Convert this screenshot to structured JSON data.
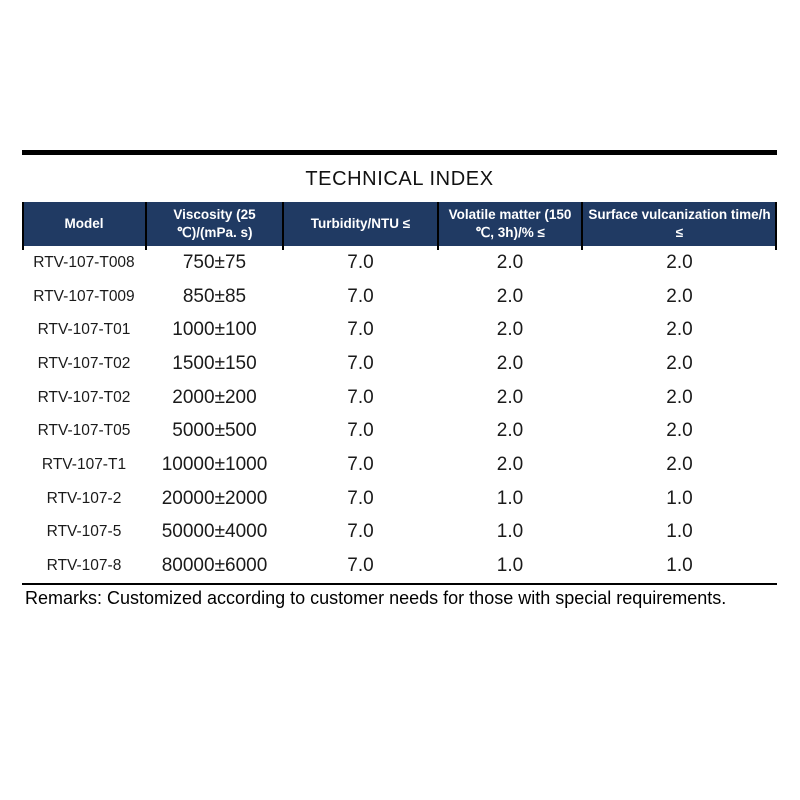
{
  "title": "TECHNICAL INDEX",
  "table": {
    "headers": [
      "Model",
      "Viscosity (25 ℃)/(mPa. s)",
      "Turbidity/NTU ≤",
      "Volatile matter (150 ℃, 3h)/% ≤",
      "Surface vulcanization time/h ≤"
    ],
    "rows": [
      [
        "RTV-107-T008",
        "750±75",
        "7.0",
        "2.0",
        "2.0"
      ],
      [
        "RTV-107-T009",
        "850±85",
        "7.0",
        "2.0",
        "2.0"
      ],
      [
        "RTV-107-T01",
        "1000±100",
        "7.0",
        "2.0",
        "2.0"
      ],
      [
        "RTV-107-T02",
        "1500±150",
        "7.0",
        "2.0",
        "2.0"
      ],
      [
        "RTV-107-T02",
        "2000±200",
        "7.0",
        "2.0",
        "2.0"
      ],
      [
        "RTV-107-T05",
        "5000±500",
        "7.0",
        "2.0",
        "2.0"
      ],
      [
        "RTV-107-T1",
        "10000±1000",
        "7.0",
        "2.0",
        "2.0"
      ],
      [
        "RTV-107-2",
        "20000±2000",
        "7.0",
        "1.0",
        "1.0"
      ],
      [
        "RTV-107-5",
        "50000±4000",
        "7.0",
        "1.0",
        "1.0"
      ],
      [
        "RTV-107-8",
        "80000±6000",
        "7.0",
        "1.0",
        "1.0"
      ]
    ]
  },
  "remarks": "Remarks: Customized according to customer needs for those with special requirements.",
  "colors": {
    "header_bg": "#203a63",
    "header_text": "#ffffff",
    "body_text": "#1a1a1a",
    "rule": "#000000"
  }
}
